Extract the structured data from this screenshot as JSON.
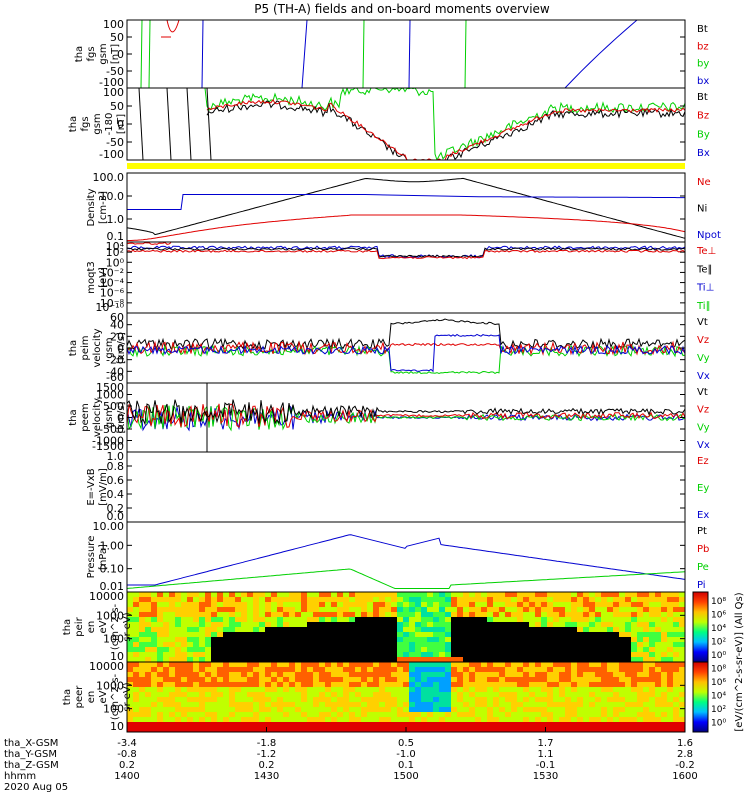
{
  "title": "P5 (TH-A) fields and on-board moments overview",
  "colors": {
    "black": "#000000",
    "red": "#e00000",
    "green": "#00d000",
    "blue": "#0000d0",
    "yellow": "#ffff00"
  },
  "chart_data": [
    {
      "type": "line",
      "id": "fgs",
      "ylabel": [
        "tha",
        "fgs",
        "gsm",
        "[nT]"
      ],
      "ylim": [
        -100,
        100
      ],
      "yticks": [
        "100",
        "50",
        "0",
        "-50",
        "-100"
      ],
      "legend": [
        {
          "name": "Bt",
          "color": "black"
        },
        {
          "name": "bz",
          "color": "red"
        },
        {
          "name": "by",
          "color": "green"
        },
        {
          "name": "bx",
          "color": "blue"
        }
      ]
    },
    {
      "type": "line",
      "id": "fgs_hr",
      "ylabel": [
        "tha",
        "fgs",
        "gsm",
        "-180",
        "[nT]"
      ],
      "ylim": [
        -120,
        120
      ],
      "yticks": [
        "100",
        "50",
        "0",
        "-50",
        "-100"
      ],
      "legend": [
        {
          "name": "Bt",
          "color": "black"
        },
        {
          "name": "Bz",
          "color": "red"
        },
        {
          "name": "By",
          "color": "green"
        },
        {
          "name": "Bx",
          "color": "blue"
        }
      ]
    },
    {
      "type": "line",
      "id": "density",
      "ylabel": [
        "Density",
        "[cm-3]"
      ],
      "yscale": "log",
      "ylim": [
        0.05,
        300
      ],
      "yticks": [
        "100.0",
        "10.0",
        "1.0",
        "0.1"
      ],
      "legend": [
        {
          "name": "Ne",
          "color": "red"
        },
        {
          "name": "Ni",
          "color": "black"
        },
        {
          "name": "Npot",
          "color": "blue"
        }
      ]
    },
    {
      "type": "line",
      "id": "temp",
      "ylabel": [
        "moqt3",
        "[eV]"
      ],
      "yscale": "log",
      "yticks": [
        "10⁴",
        "10²",
        "10⁰",
        "10⁻²",
        "10⁻⁴",
        "10⁻⁶",
        "10⁻⁸",
        "10⁻¹⁰"
      ],
      "legend": [
        {
          "name": "Te⊥",
          "color": "red"
        },
        {
          "name": "Te∥",
          "color": "black"
        },
        {
          "name": "Ti⊥",
          "color": "blue"
        },
        {
          "name": "Ti∥",
          "color": "green"
        }
      ]
    },
    {
      "type": "line",
      "id": "peim_vel",
      "ylabel": [
        "tha",
        "peim",
        "velocity",
        "gsm",
        "[km/s]"
      ],
      "ylim": [
        -60,
        60
      ],
      "yticks": [
        "60",
        "40",
        "20",
        "0",
        "-20",
        "-40",
        "-60"
      ],
      "legend": [
        {
          "name": "Vt",
          "color": "black"
        },
        {
          "name": "Vz",
          "color": "red"
        },
        {
          "name": "Vy",
          "color": "green"
        },
        {
          "name": "Vx",
          "color": "blue"
        }
      ]
    },
    {
      "type": "line",
      "id": "peem_vel",
      "ylabel": [
        "tha",
        "peem",
        "velocity",
        "gsm",
        "[km/s]"
      ],
      "ylim": [
        -1500,
        1500
      ],
      "yticks": [
        "1500",
        "1000",
        "500",
        "0",
        "-500",
        "-1000",
        "-1500"
      ],
      "legend": [
        {
          "name": "Vt",
          "color": "black"
        },
        {
          "name": "Vz",
          "color": "red"
        },
        {
          "name": "Vy",
          "color": "green"
        },
        {
          "name": "Vx",
          "color": "blue"
        }
      ]
    },
    {
      "type": "line",
      "id": "efield",
      "ylabel": [
        "E=-VxB",
        "[mV/m]"
      ],
      "ylim": [
        0,
        1
      ],
      "yticks": [
        "1.0",
        "0.8",
        "0.6",
        "0.4",
        "0.2",
        "0.0"
      ],
      "legend": [
        {
          "name": "Ez",
          "color": "red"
        },
        {
          "name": "Ey",
          "color": "green"
        },
        {
          "name": "Ex",
          "color": "blue"
        }
      ]
    },
    {
      "type": "line",
      "id": "pressure",
      "ylabel": [
        "Pressure",
        "[nPa]"
      ],
      "yscale": "log",
      "yticks": [
        "10.00",
        "1.00",
        "0.10",
        "0.01"
      ],
      "legend": [
        {
          "name": "Pt",
          "color": "black"
        },
        {
          "name": "Pb",
          "color": "red"
        },
        {
          "name": "Pe",
          "color": "green"
        },
        {
          "name": "Pi",
          "color": "blue"
        }
      ]
    },
    {
      "type": "heatmap",
      "id": "peir",
      "ylabel": [
        "tha",
        "peir",
        "en",
        "eV",
        "(cm^2-s-",
        "sr-eV)"
      ],
      "yscale": "log",
      "yticks": [
        "10000",
        "1000",
        "100",
        "10"
      ]
    },
    {
      "type": "heatmap",
      "id": "peer",
      "ylabel": [
        "tha",
        "peer",
        "en",
        "eV",
        "(cm^2-s-",
        "sr-eV)"
      ],
      "yscale": "log",
      "yticks": [
        "10000",
        "1000",
        "100",
        "10"
      ]
    }
  ],
  "colorbar": {
    "label": "[eV/(cm^2-s-sr-eV)] (All Qs)",
    "ticks": [
      "10⁸",
      "10⁶",
      "10⁴",
      "10²",
      "10⁰",
      "10⁸",
      "10⁶",
      "10⁴",
      "10²",
      "10⁰"
    ]
  },
  "x_axis": {
    "tick_positions": [
      0,
      0.25,
      0.5,
      0.75,
      1
    ],
    "rows": [
      {
        "label": "tha_X-GSM",
        "values": [
          "-3.4",
          "-1.8",
          "0.5",
          "1.7",
          "1.6"
        ]
      },
      {
        "label": "tha_Y-GSM",
        "values": [
          "-0.8",
          "-1.2",
          "-1.0",
          "1.1",
          "2.8"
        ]
      },
      {
        "label": "tha_Z-GSM",
        "values": [
          "0.2",
          "0.2",
          "0.1",
          "-0.1",
          "-0.2"
        ]
      },
      {
        "label": "hhmm",
        "values": [
          "1400",
          "1430",
          "1500",
          "1530",
          "1600"
        ]
      }
    ],
    "date": "2020 Aug 05"
  }
}
